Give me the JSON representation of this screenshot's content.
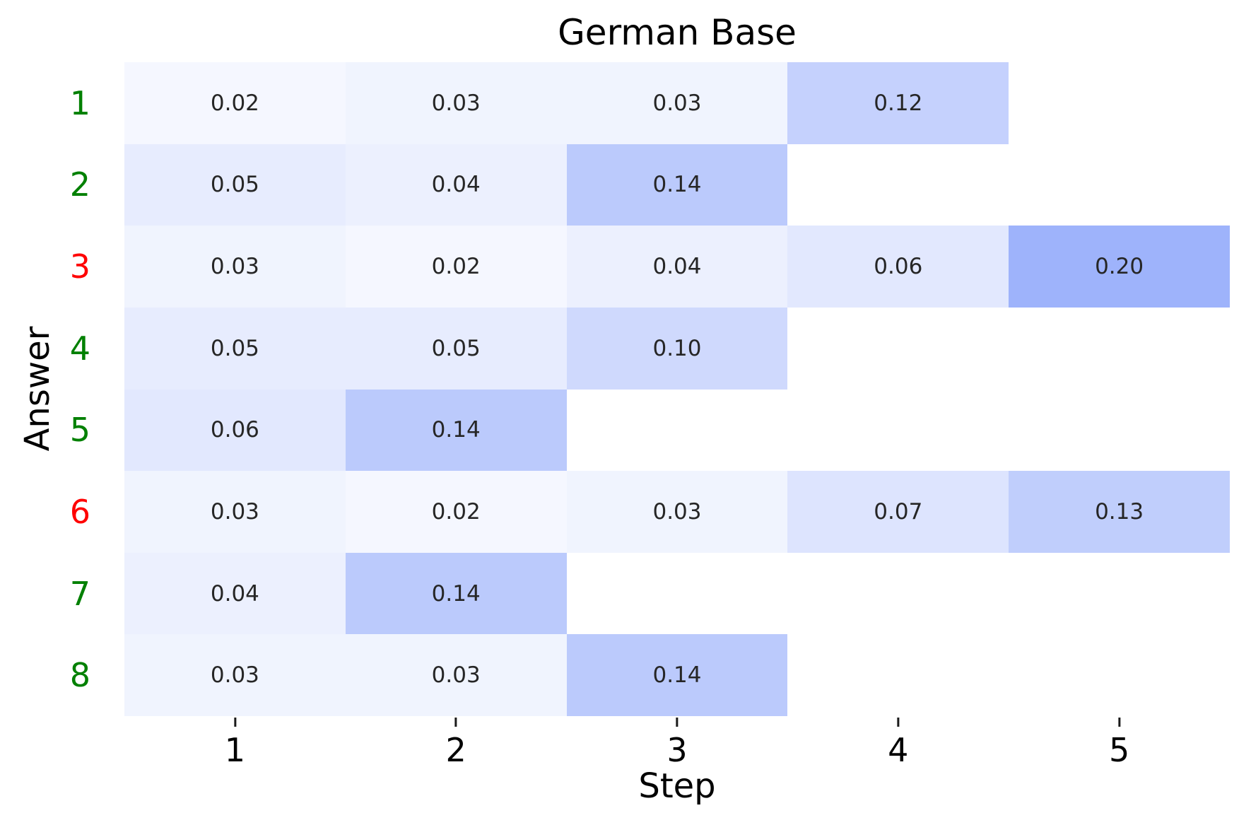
{
  "chart_data": {
    "type": "heatmap",
    "title": "German Base",
    "xlabel": "Step",
    "ylabel": "Answer",
    "x_ticklabels": [
      "1",
      "2",
      "3",
      "4",
      "5"
    ],
    "y_ticklabels": [
      "1",
      "2",
      "3",
      "4",
      "5",
      "6",
      "7",
      "8"
    ],
    "y_ticklabel_colors": [
      "#008000",
      "#008000",
      "#ff0000",
      "#008000",
      "#008000",
      "#ff0000",
      "#008000",
      "#008000"
    ],
    "values": [
      [
        0.02,
        0.03,
        0.03,
        0.12,
        null
      ],
      [
        0.05,
        0.04,
        0.14,
        null,
        null
      ],
      [
        0.03,
        0.02,
        0.04,
        0.06,
        0.2
      ],
      [
        0.05,
        0.05,
        0.1,
        null,
        null
      ],
      [
        0.06,
        0.14,
        null,
        null,
        null
      ],
      [
        0.03,
        0.02,
        0.03,
        0.07,
        0.13
      ],
      [
        0.04,
        0.14,
        null,
        null,
        null
      ],
      [
        0.03,
        0.03,
        0.14,
        null,
        null
      ]
    ],
    "value_format_decimals": 2,
    "vmin": 0,
    "vmax": 0.2,
    "colormap_low": "#ffffff",
    "colormap_high": "#9eb3fb",
    "annotation_color": "#262626",
    "missing_cell_color": "#ffffff",
    "grid": "off",
    "legend": "none"
  }
}
